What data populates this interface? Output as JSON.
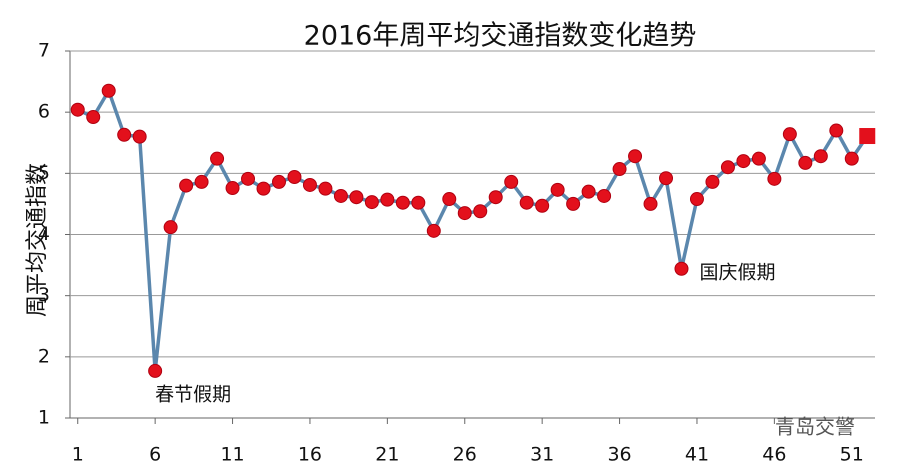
{
  "chart_data": {
    "type": "line",
    "title": "2016年周平均交通指数变化趋势",
    "y_label": "周平均交通指数",
    "x": [
      1,
      2,
      3,
      4,
      5,
      6,
      7,
      8,
      9,
      10,
      11,
      12,
      13,
      14,
      15,
      16,
      17,
      18,
      19,
      20,
      21,
      22,
      23,
      24,
      25,
      26,
      27,
      28,
      29,
      30,
      31,
      32,
      33,
      34,
      35,
      36,
      37,
      38,
      39,
      40,
      41,
      42,
      43,
      44,
      45,
      46,
      47,
      48,
      49,
      50,
      51,
      52
    ],
    "series": [
      {
        "name": "周平均交通指数",
        "color": "#5b87ad",
        "marker_color": "#e3101c",
        "values": [
          6.04,
          5.92,
          6.35,
          5.63,
          5.6,
          1.77,
          4.12,
          4.8,
          4.86,
          5.24,
          4.76,
          4.91,
          4.75,
          4.86,
          4.94,
          4.81,
          4.75,
          4.63,
          4.61,
          4.53,
          4.57,
          4.52,
          4.52,
          4.06,
          4.58,
          4.35,
          4.38,
          4.61,
          4.86,
          4.52,
          4.47,
          4.73,
          4.5,
          4.7,
          4.63,
          5.07,
          5.28,
          4.5,
          4.92,
          3.44,
          4.58,
          4.86,
          5.1,
          5.2,
          5.24,
          4.91,
          5.64,
          5.17,
          5.28,
          5.7,
          5.24,
          5.61
        ]
      }
    ],
    "xlim": [
      0.5,
      52.5
    ],
    "xticks": [
      1,
      6,
      11,
      16,
      21,
      26,
      31,
      36,
      41,
      46,
      51
    ],
    "ylim": [
      1,
      7
    ],
    "yticks": [
      1,
      2,
      3,
      4,
      5,
      6,
      7
    ],
    "grid": true,
    "annotations": [
      {
        "text": "春节假期",
        "x": 6,
        "y": 1.77
      },
      {
        "text": "国庆假期",
        "x": 40,
        "y": 3.44
      }
    ],
    "watermark": "青岛交警"
  }
}
